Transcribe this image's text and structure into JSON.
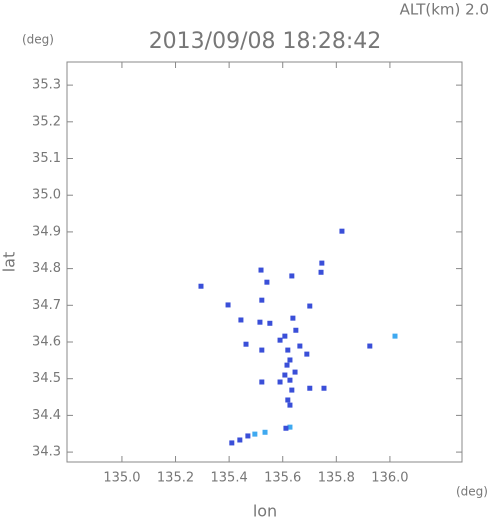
{
  "chart_data": {
    "type": "scatter",
    "header": "ALT(km)  2.0",
    "title": "2013/09/08 18:28:42",
    "y_unit": "(deg)",
    "x_unit": "(deg)",
    "xlabel": "lon",
    "ylabel": "lat",
    "xlim": [
      134.795,
      136.269
    ],
    "ylim": [
      34.273,
      35.363
    ],
    "xticks": [
      {
        "value": 135.0,
        "label": "135.0"
      },
      135.2,
      135.4,
      135.6,
      135.8,
      {
        "value": 136.0,
        "label": "136.0"
      }
    ],
    "yticks": [
      34.3,
      34.4,
      34.5,
      34.6,
      34.7,
      34.8,
      34.9,
      {
        "value": 35.0,
        "label": "35.0"
      },
      35.1,
      35.2,
      35.3
    ],
    "x": [
      135.821,
      135.746,
      135.743,
      135.634,
      135.519,
      135.541,
      135.295,
      135.522,
      135.396,
      135.701,
      135.444,
      135.515,
      135.552,
      135.638,
      135.649,
      135.522,
      135.59,
      135.608,
      135.463,
      135.664,
      135.69,
      135.619,
      135.627,
      135.616,
      135.646,
      135.608,
      135.627,
      135.59,
      135.634,
      135.619,
      135.627,
      135.522,
      135.701,
      135.754,
      135.925,
      136.019,
      135.627,
      135.612,
      135.534,
      135.496,
      135.47,
      135.44,
      135.41
    ],
    "values": [
      34.902,
      34.815,
      34.79,
      34.78,
      34.796,
      34.763,
      34.752,
      34.714,
      34.701,
      34.698,
      34.66,
      34.654,
      34.651,
      34.665,
      34.632,
      34.578,
      34.605,
      34.616,
      34.594,
      34.589,
      34.567,
      34.578,
      34.551,
      34.537,
      34.518,
      34.51,
      34.496,
      34.491,
      34.469,
      34.442,
      34.428,
      34.491,
      34.474,
      34.474,
      34.589,
      34.616,
      34.368,
      34.365,
      34.354,
      34.349,
      34.344,
      34.333,
      34.325
    ],
    "point_colors": [
      "#3a4fd8",
      "#3a4fd8",
      "#3a4fd8",
      "#3a4fd8",
      "#3a4fd8",
      "#3a4fd8",
      "#3a4fd8",
      "#3a4fd8",
      "#3a4fd8",
      "#3a4fd8",
      "#3a4fd8",
      "#3a4fd8",
      "#3a4fd8",
      "#3a4fd8",
      "#3a4fd8",
      "#3a4fd8",
      "#3a4fd8",
      "#3a4fd8",
      "#3a4fd8",
      "#3a4fd8",
      "#3a4fd8",
      "#3a4fd8",
      "#3a4fd8",
      "#3a4fd8",
      "#3a4fd8",
      "#3a4fd8",
      "#3a4fd8",
      "#3a4fd8",
      "#3a4fd8",
      "#3a4fd8",
      "#3a4fd8",
      "#3a4fd8",
      "#3a4fd8",
      "#3a4fd8",
      "#3a4fd8",
      "#3fa9f0",
      "#3fa9f0",
      "#3a4fd8",
      "#3fa9f0",
      "#3fa9f0",
      "#3a4fd8",
      "#3a4fd8",
      "#3a4fd8"
    ]
  }
}
